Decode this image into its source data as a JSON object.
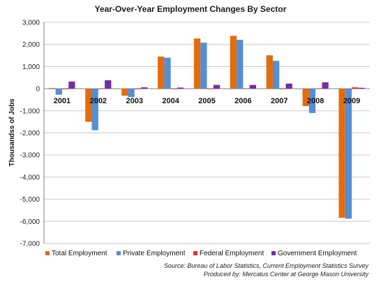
{
  "chart_data": {
    "type": "bar",
    "title": "Year-Over-Year Employment Changes By Sector",
    "ylabel": "Thousandss of Jobs",
    "xlabel": "",
    "ylim": [
      -7000,
      3000
    ],
    "yticks": [
      "3,000",
      "2,000",
      "1,000",
      "0",
      "-1,000",
      "-2,000",
      "-3,000",
      "-4,000",
      "-5,000",
      "-6,000",
      "-7,000"
    ],
    "grid": true,
    "legend_position": "bottom",
    "categories": [
      "2001",
      "2002",
      "2003",
      "2004",
      "2005",
      "2006",
      "2007",
      "2008",
      "2009"
    ],
    "series": [
      {
        "name": "Total Employment",
        "color": "#e46c0a",
        "values": [
          30,
          -1500,
          -320,
          1450,
          2270,
          2390,
          1510,
          -790,
          -5840
        ]
      },
      {
        "name": "Private Employment",
        "color": "#558ed5",
        "values": [
          -270,
          -1880,
          -380,
          1400,
          2080,
          2210,
          1260,
          -1100,
          -5880
        ]
      },
      {
        "name": "Federal Employment",
        "color": "#e03030",
        "values": [
          -30,
          10,
          -30,
          -20,
          -10,
          10,
          -5,
          20,
          60
        ]
      },
      {
        "name": "Government Employment",
        "color": "#7030a0",
        "values": [
          320,
          380,
          60,
          50,
          170,
          170,
          230,
          290,
          40
        ]
      }
    ]
  },
  "source_line1": "Source: Bureau of Labor Statistics, Current Employment Statistics Survey",
  "source_line2": "Produced by: Mercatus Center at George Mason University"
}
